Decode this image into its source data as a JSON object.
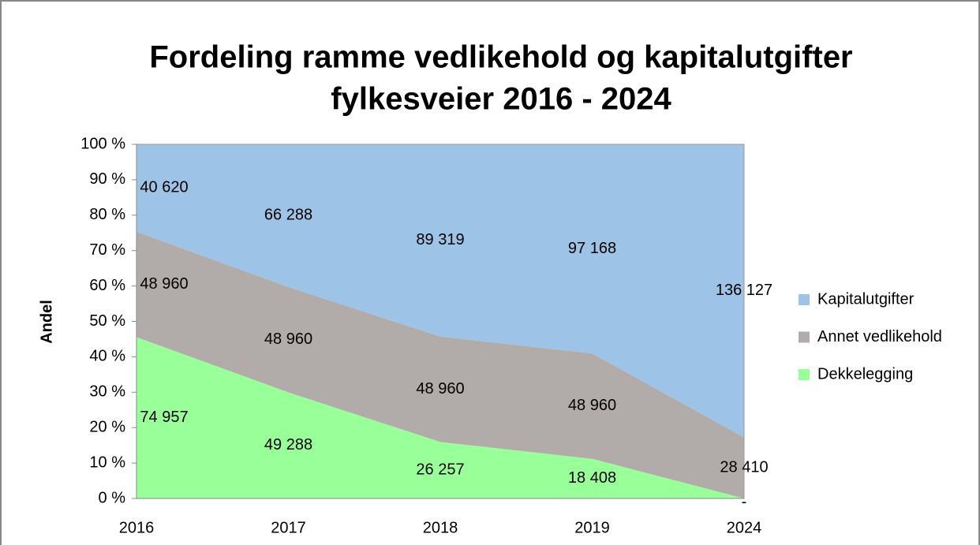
{
  "chart_data": {
    "type": "area",
    "stacked": "percent",
    "title": [
      "Fordeling ramme vedlikehold og kapitalutgifter",
      "fylkesveier 2016 - 2024"
    ],
    "ylabel": "Andel",
    "categories": [
      "2016",
      "2017",
      "2018",
      "2019",
      "2024"
    ],
    "series": [
      {
        "name": "Dekkelegging",
        "color": "#99ff99",
        "values": [
          74957,
          49288,
          26257,
          18408,
          0
        ],
        "value_labels": [
          "74 957",
          "49 288",
          "26 257",
          "18 408",
          "-"
        ]
      },
      {
        "name": "Annet vedlikehold",
        "color": "#b1aba9",
        "values": [
          48960,
          48960,
          48960,
          48960,
          28410
        ],
        "value_labels": [
          "48 960",
          "48 960",
          "48 960",
          "48 960",
          "28 410"
        ]
      },
      {
        "name": "Kapitalutgifter",
        "color": "#9dc3e6",
        "values": [
          40620,
          66288,
          89319,
          97168,
          136127
        ],
        "value_labels": [
          "40 620",
          "66 288",
          "89 319",
          "97 168",
          "136 127"
        ]
      }
    ],
    "ylim": [
      0,
      100
    ],
    "yticks": [
      {
        "value": 0,
        "label": "0 %"
      },
      {
        "value": 10,
        "label": "10 %"
      },
      {
        "value": 20,
        "label": "20 %"
      },
      {
        "value": 30,
        "label": "30 %"
      },
      {
        "value": 40,
        "label": "40 %"
      },
      {
        "value": 50,
        "label": "50 %"
      },
      {
        "value": 60,
        "label": "60 %"
      },
      {
        "value": 70,
        "label": "70 %"
      },
      {
        "value": 80,
        "label": "80 %"
      },
      {
        "value": 90,
        "label": "90 %"
      },
      {
        "value": 100,
        "label": "100 %"
      }
    ],
    "legend": "right"
  }
}
